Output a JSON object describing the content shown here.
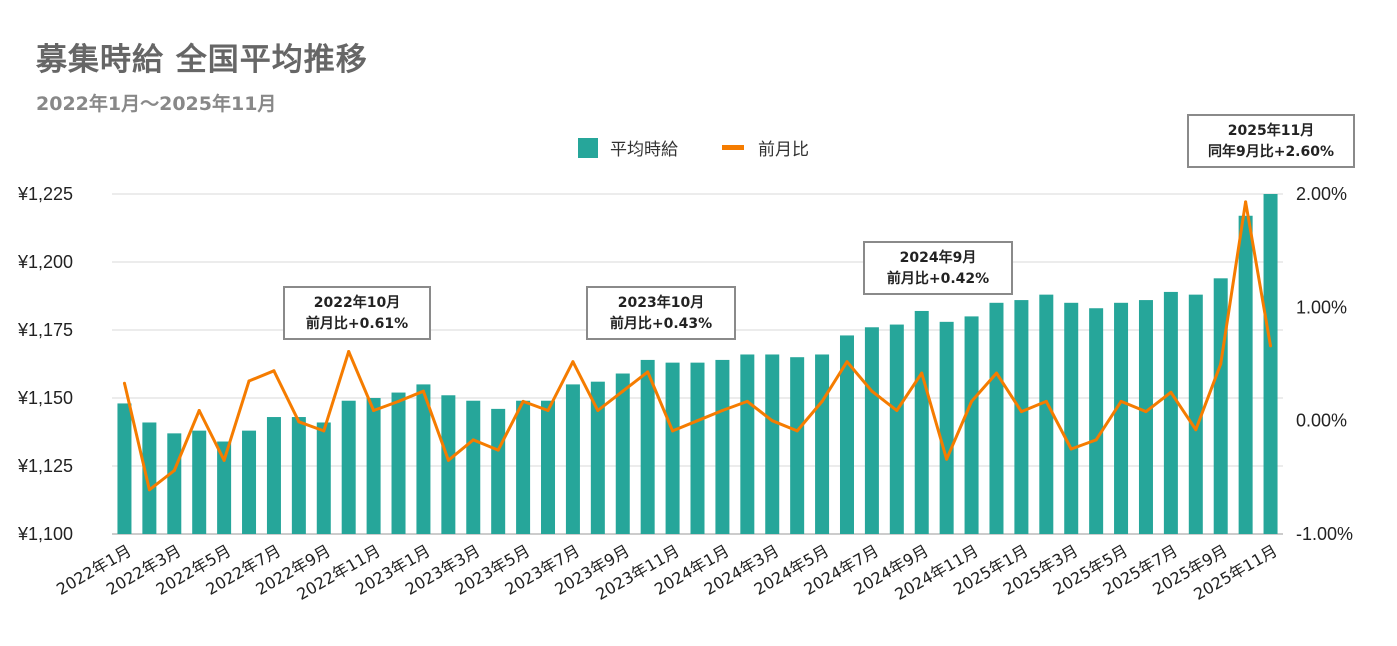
{
  "title": "募集時給 全国平均推移",
  "subtitle": "2022年1月〜2025年11月",
  "legend": [
    {
      "label": "平均時給",
      "color": "#26a69a"
    },
    {
      "label": "前月比",
      "color": "#f57c00"
    }
  ],
  "chart_data": {
    "type": "bar",
    "categories": [
      "2022年1月",
      "2022年2月",
      "2022年3月",
      "2022年4月",
      "2022年5月",
      "2022年6月",
      "2022年7月",
      "2022年8月",
      "2022年9月",
      "2022年10月",
      "2022年11月",
      "2022年12月",
      "2023年1月",
      "2023年2月",
      "2023年3月",
      "2023年4月",
      "2023年5月",
      "2023年6月",
      "2023年7月",
      "2023年8月",
      "2023年9月",
      "2023年10月",
      "2023年11月",
      "2023年12月",
      "2024年1月",
      "2024年2月",
      "2024年3月",
      "2024年4月",
      "2024年5月",
      "2024年6月",
      "2024年7月",
      "2024年8月",
      "2024年9月",
      "2024年10月",
      "2024年11月",
      "2024年12月",
      "2025年1月",
      "2025年2月",
      "2025年3月",
      "2025年4月",
      "2025年5月",
      "2025年6月",
      "2025年7月",
      "2025年8月",
      "2025年9月",
      "2025年10月",
      "2025年11月"
    ],
    "x_tick_labels": [
      "2022年1月",
      "2022年3月",
      "2022年5月",
      "2022年7月",
      "2022年9月",
      "2022年11月",
      "2023年1月",
      "2023年3月",
      "2023年5月",
      "2023年7月",
      "2023年9月",
      "2023年11月",
      "2024年1月",
      "2024年3月",
      "2024年5月",
      "2024年7月",
      "2024年9月",
      "2024年11月",
      "2025年1月",
      "2025年3月",
      "2025年5月",
      "2025年7月",
      "2025年9月",
      "2025年11月"
    ],
    "series": [
      {
        "name": "平均時給",
        "type": "bar",
        "axis": "left",
        "color": "#26a69a",
        "values": [
          1148,
          1141,
          1137,
          1138,
          1134,
          1138,
          1143,
          1143,
          1141,
          1149,
          1150,
          1152,
          1155,
          1151,
          1149,
          1146,
          1149,
          1149,
          1155,
          1156,
          1159,
          1164,
          1163,
          1163,
          1164,
          1166,
          1166,
          1165,
          1166,
          1173,
          1176,
          1177,
          1182,
          1178,
          1180,
          1185,
          1186,
          1188,
          1185,
          1183,
          1185,
          1186,
          1189,
          1188,
          1194,
          1217,
          1225
        ]
      },
      {
        "name": "前月比",
        "type": "line",
        "axis": "right",
        "color": "#f57c00",
        "values": [
          0.33,
          -0.61,
          -0.44,
          0.09,
          -0.35,
          0.35,
          0.44,
          -0.01,
          -0.09,
          0.61,
          0.09,
          0.17,
          0.26,
          -0.35,
          -0.17,
          -0.26,
          0.17,
          0.09,
          0.52,
          0.09,
          0.26,
          0.43,
          -0.09,
          0.0,
          0.09,
          0.17,
          0.0,
          -0.09,
          0.17,
          0.52,
          0.26,
          0.09,
          0.42,
          -0.34,
          0.17,
          0.42,
          0.08,
          0.17,
          -0.25,
          -0.17,
          0.17,
          0.08,
          0.25,
          -0.08,
          0.5,
          1.93,
          0.66
        ]
      }
    ],
    "y_left": {
      "min": 1100,
      "max": 1225,
      "ticks": [
        "¥1,100",
        "¥1,125",
        "¥1,150",
        "¥1,175",
        "¥1,200",
        "¥1,225"
      ]
    },
    "y_right": {
      "min": -1.0,
      "max": 2.0,
      "ticks": [
        "-1.00%",
        "0.00%",
        "1.00%",
        "2.00%"
      ]
    },
    "grid": true,
    "legend_position": "top-center",
    "annotations": [
      {
        "line1": "2022年10月",
        "line2": "前月比+0.61%"
      },
      {
        "line1": "2023年10月",
        "line2": "前月比+0.43%"
      },
      {
        "line1": "2024年9月",
        "line2": "前月比+0.42%"
      },
      {
        "line1": "2025年11月",
        "line2": "同年9月比+2.60%"
      }
    ]
  }
}
